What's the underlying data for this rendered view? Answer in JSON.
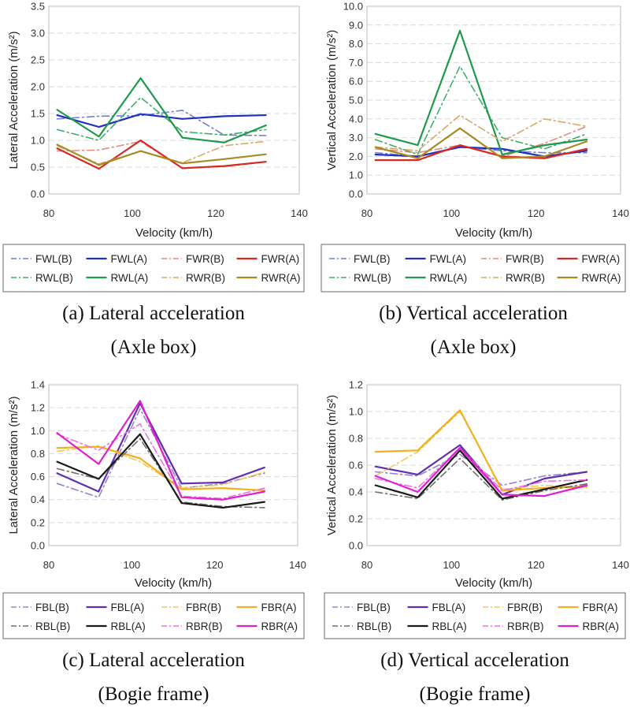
{
  "chart_data": [
    {
      "type": "line",
      "id": "a",
      "caption_line1": "(a) Lateral acceleration",
      "caption_line2": "(Axle box)",
      "xlabel": "Velocity (km/h)",
      "ylabel": "Lateral Acceleration (m/s²)",
      "xlim": [
        80,
        140
      ],
      "xticks": [
        80,
        100,
        120,
        140
      ],
      "xtick_labels": [
        "80",
        "100",
        "120",
        "140"
      ],
      "ylim": [
        0,
        3.5
      ],
      "yticks": [
        0,
        0.5,
        1,
        1.5,
        2,
        2.5,
        3,
        3.5
      ],
      "ytick_labels": [
        "0.0",
        "0.5",
        "1.0",
        "1.5",
        "2.0",
        "2.5",
        "3.0",
        "3.5"
      ],
      "grid": true,
      "legend_position": "bottom",
      "x": [
        82,
        92,
        102,
        112,
        122,
        132
      ],
      "series": [
        {
          "name": "FWL(B)",
          "color": "#6d7fd6",
          "dash": "dashdot",
          "values": [
            1.4,
            1.45,
            1.46,
            1.56,
            1.1,
            1.09
          ]
        },
        {
          "name": "FWL(A)",
          "color": "#1f2fc4",
          "dash": "solid",
          "values": [
            1.47,
            1.25,
            1.49,
            1.4,
            1.45,
            1.47
          ]
        },
        {
          "name": "FWR(B)",
          "color": "#e88a80",
          "dash": "dashdot",
          "values": [
            0.8,
            0.82,
            0.98,
            0.48,
            0.51,
            0.6
          ]
        },
        {
          "name": "FWR(A)",
          "color": "#d62a22",
          "dash": "solid",
          "values": [
            0.85,
            0.47,
            1.0,
            0.48,
            0.52,
            0.6
          ]
        },
        {
          "name": "RWL(B)",
          "color": "#3fae6a",
          "dash": "dashdot",
          "values": [
            1.2,
            1.0,
            1.8,
            1.16,
            1.1,
            1.2
          ]
        },
        {
          "name": "RWL(A)",
          "color": "#1f9a4c",
          "dash": "solid",
          "values": [
            1.57,
            1.07,
            2.16,
            1.05,
            0.96,
            1.28
          ]
        },
        {
          "name": "RWR(B)",
          "color": "#d8a866",
          "dash": "dashdot",
          "values": [
            0.9,
            0.56,
            0.8,
            0.58,
            0.9,
            0.98
          ]
        },
        {
          "name": "RWR(A)",
          "color": "#a88a22",
          "dash": "solid",
          "values": [
            0.92,
            0.54,
            0.8,
            0.57,
            0.65,
            0.74
          ]
        }
      ]
    },
    {
      "type": "line",
      "id": "b",
      "caption_line1": "(b) Vertical acceleration",
      "caption_line2": "(Axle box)",
      "xlabel": "Velocity (km/h)",
      "ylabel": "Vertical Acceleration (m/s²)",
      "xlim": [
        80,
        140
      ],
      "xticks": [
        80,
        100,
        120,
        140
      ],
      "xtick_labels": [
        "80",
        "100",
        "120",
        "140"
      ],
      "ylim": [
        0,
        10
      ],
      "yticks": [
        0,
        1,
        2,
        3,
        4,
        5,
        6,
        7,
        8,
        9,
        10
      ],
      "ytick_labels": [
        "0.0",
        "1.0",
        "2.0",
        "3.0",
        "4.0",
        "5.0",
        "6.0",
        "7.0",
        "8.0",
        "9.0",
        "10.0"
      ],
      "grid": true,
      "legend_position": "bottom",
      "x": [
        82,
        92,
        102,
        112,
        122,
        132
      ],
      "series": [
        {
          "name": "FWL(B)",
          "color": "#6d7fd6",
          "dash": "dashdot",
          "values": [
            2.2,
            2.0,
            2.5,
            2.3,
            2.2,
            2.2
          ]
        },
        {
          "name": "FWL(A)",
          "color": "#1f2fc4",
          "dash": "solid",
          "values": [
            2.1,
            2.0,
            2.5,
            2.4,
            2.0,
            2.3
          ]
        },
        {
          "name": "FWR(B)",
          "color": "#e88a80",
          "dash": "dashdot",
          "values": [
            2.4,
            2.2,
            2.6,
            2.0,
            2.7,
            3.6
          ]
        },
        {
          "name": "FWR(A)",
          "color": "#d62a22",
          "dash": "solid",
          "values": [
            1.8,
            1.8,
            2.6,
            2.0,
            1.9,
            2.4
          ]
        },
        {
          "name": "RWL(B)",
          "color": "#3fae6a",
          "dash": "dashdot",
          "values": [
            2.9,
            2.1,
            6.8,
            3.0,
            2.4,
            3.2
          ]
        },
        {
          "name": "RWL(A)",
          "color": "#1f9a4c",
          "dash": "solid",
          "values": [
            3.2,
            2.6,
            8.7,
            2.1,
            2.6,
            2.9
          ]
        },
        {
          "name": "RWR(B)",
          "color": "#d8a866",
          "dash": "dashdot",
          "values": [
            2.5,
            2.3,
            4.2,
            2.8,
            4.0,
            3.6
          ]
        },
        {
          "name": "RWR(A)",
          "color": "#a88a22",
          "dash": "solid",
          "values": [
            2.5,
            1.9,
            3.5,
            1.9,
            2.0,
            2.8
          ]
        }
      ]
    },
    {
      "type": "line",
      "id": "c",
      "caption_line1": "(c) Lateral acceleration",
      "caption_line2": "(Bogie frame)",
      "xlabel": "Velocity (km/h)",
      "ylabel": "Lateral Acceleration (m/s²)",
      "xlim": [
        80,
        140
      ],
      "xticks": [
        80,
        100,
        120,
        140
      ],
      "xtick_labels": [
        "80",
        "100",
        "120",
        "140"
      ],
      "ylim": [
        0,
        1.4
      ],
      "yticks": [
        0,
        0.2,
        0.4,
        0.6,
        0.8,
        1.0,
        1.2,
        1.4
      ],
      "ytick_labels": [
        "0.0",
        "0.2",
        "0.4",
        "0.6",
        "0.8",
        "1.0",
        "1.2",
        "1.4"
      ],
      "grid": true,
      "legend_position": "bottom",
      "x": [
        82,
        92,
        102,
        112,
        122,
        132
      ],
      "series": [
        {
          "name": "FBL(B)",
          "color": "#9a80d0",
          "dash": "dashdot",
          "values": [
            0.54,
            0.42,
            1.19,
            0.5,
            0.54,
            0.63
          ]
        },
        {
          "name": "FBL(A)",
          "color": "#5e2fb0",
          "dash": "solid",
          "values": [
            0.63,
            0.47,
            1.24,
            0.54,
            0.55,
            0.68
          ]
        },
        {
          "name": "FBR(B)",
          "color": "#f2c860",
          "dash": "dashdot",
          "values": [
            0.82,
            0.87,
            0.73,
            0.5,
            0.53,
            0.64
          ]
        },
        {
          "name": "FBR(A)",
          "color": "#f0b020",
          "dash": "solid",
          "values": [
            0.85,
            0.86,
            0.76,
            0.49,
            0.5,
            0.48
          ]
        },
        {
          "name": "RBL(B)",
          "color": "#707070",
          "dash": "dashdot",
          "values": [
            0.67,
            0.58,
            0.93,
            0.38,
            0.34,
            0.33
          ]
        },
        {
          "name": "RBL(A)",
          "color": "#1a1a1a",
          "dash": "solid",
          "values": [
            0.73,
            0.58,
            0.97,
            0.37,
            0.33,
            0.38
          ]
        },
        {
          "name": "RBR(B)",
          "color": "#f070e0",
          "dash": "dashdot",
          "values": [
            0.97,
            0.83,
            1.06,
            0.43,
            0.41,
            0.5
          ]
        },
        {
          "name": "RBR(A)",
          "color": "#e020d0",
          "dash": "solid",
          "values": [
            0.98,
            0.71,
            1.26,
            0.42,
            0.4,
            0.47
          ]
        }
      ]
    },
    {
      "type": "line",
      "id": "d",
      "caption_line1": "(d) Vertical acceleration",
      "caption_line2": "(Bogie frame)",
      "xlabel": "Velocity (km/h)",
      "ylabel": "Vertical Acceleration (m/s²)",
      "xlim": [
        80,
        140
      ],
      "xticks": [
        80,
        100,
        120,
        140
      ],
      "xtick_labels": [
        "80",
        "100",
        "120",
        "140"
      ],
      "ylim": [
        0,
        1.2
      ],
      "yticks": [
        0,
        0.2,
        0.4,
        0.6,
        0.8,
        1.0,
        1.2
      ],
      "ytick_labels": [
        "0.0",
        "0.2",
        "0.4",
        "0.6",
        "0.8",
        "1.0",
        "1.2"
      ],
      "grid": true,
      "legend_position": "bottom",
      "x": [
        82,
        92,
        102,
        112,
        122,
        132
      ],
      "series": [
        {
          "name": "FBL(B)",
          "color": "#9a80d0",
          "dash": "dashdot",
          "values": [
            0.55,
            0.52,
            0.68,
            0.45,
            0.52,
            0.55
          ]
        },
        {
          "name": "FBL(A)",
          "color": "#5e2fb0",
          "dash": "solid",
          "values": [
            0.59,
            0.53,
            0.75,
            0.38,
            0.5,
            0.55
          ]
        },
        {
          "name": "FBR(B)",
          "color": "#f2c860",
          "dash": "dashdot",
          "values": [
            0.52,
            0.7,
            1.0,
            0.42,
            0.45,
            0.43
          ]
        },
        {
          "name": "FBR(A)",
          "color": "#f0b020",
          "dash": "solid",
          "values": [
            0.7,
            0.71,
            1.01,
            0.41,
            0.43,
            0.44
          ]
        },
        {
          "name": "RBL(B)",
          "color": "#707070",
          "dash": "dashdot",
          "values": [
            0.4,
            0.35,
            0.65,
            0.34,
            0.41,
            0.46
          ]
        },
        {
          "name": "RBL(A)",
          "color": "#1a1a1a",
          "dash": "solid",
          "values": [
            0.45,
            0.36,
            0.71,
            0.35,
            0.42,
            0.49
          ]
        },
        {
          "name": "RBR(B)",
          "color": "#f070e0",
          "dash": "dashdot",
          "values": [
            0.5,
            0.43,
            0.73,
            0.41,
            0.48,
            0.49
          ]
        },
        {
          "name": "RBR(A)",
          "color": "#e020d0",
          "dash": "solid",
          "values": [
            0.52,
            0.4,
            0.73,
            0.38,
            0.37,
            0.45
          ]
        }
      ]
    }
  ]
}
